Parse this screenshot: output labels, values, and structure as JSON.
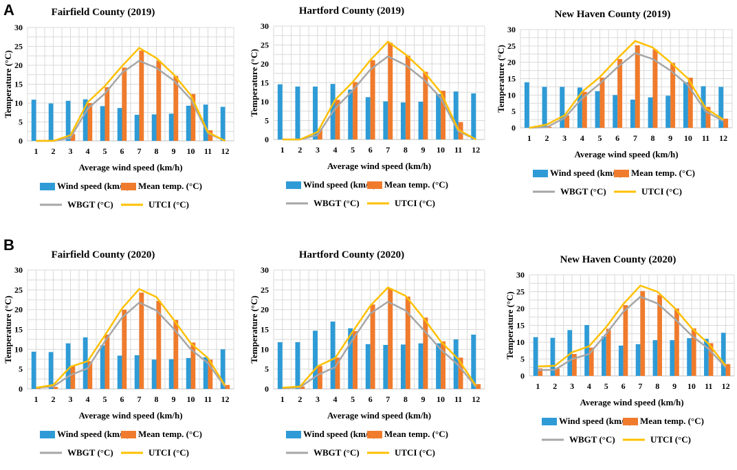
{
  "panel_labels": [
    "A",
    "B"
  ],
  "colors": {
    "wind": "#2e9bd6",
    "mean": "#f07b2c",
    "wbgt": "#a6a6a6",
    "utci": "#ffc000"
  },
  "chart_data": [
    {
      "type": "bar",
      "title": "Fairfield County (2019)",
      "xlabel": "Average wind speed (km/h)",
      "ylabel": "Temperature (°C)",
      "ylim": [
        0,
        30
      ],
      "yticks": [
        "0",
        "5",
        "10",
        "15",
        "20",
        "25",
        "30"
      ],
      "categories": [
        "1",
        "2",
        "3",
        "4",
        "5",
        "6",
        "7",
        "8",
        "9",
        "10",
        "11",
        "12"
      ],
      "series": [
        {
          "name": "Wind speed (km/h)",
          "kind": "bar",
          "values": [
            10.9,
            9.9,
            10.6,
            11.0,
            9.2,
            8.7,
            6.9,
            7.0,
            7.2,
            9.3,
            9.6,
            9.0
          ]
        },
        {
          "name": "Mean temp. (°C)",
          "kind": "bar",
          "values": [
            0,
            0,
            1.8,
            10.0,
            14.2,
            19.4,
            23.9,
            21.2,
            17.2,
            12.4,
            2.8,
            0
          ]
        },
        {
          "name": "WBGT (°C)",
          "kind": "line",
          "values": [
            -0.5,
            -0.8,
            0.8,
            8.5,
            12.5,
            18.0,
            21.2,
            19.3,
            16.0,
            11.0,
            2.0,
            -0.5
          ]
        },
        {
          "name": "UTCI (°C)",
          "kind": "line",
          "values": [
            -0.5,
            -0.8,
            1.5,
            10.2,
            14.5,
            19.8,
            24.6,
            21.9,
            17.6,
            12.1,
            2.3,
            -0.3
          ]
        }
      ],
      "legend": [
        "Wind speed (km/h)",
        "Mean temp. (°C)",
        "WBGT (°C)",
        "UTCI (°C)"
      ]
    },
    {
      "type": "bar",
      "title": "Hartford County (2019)",
      "xlabel": "Average wind speed (km/h)",
      "ylabel": "Temperature (°C)",
      "ylim": [
        0,
        30
      ],
      "yticks": [
        "0",
        "5",
        "10",
        "15",
        "20",
        "25",
        "30"
      ],
      "categories": [
        "1",
        "2",
        "3",
        "4",
        "5",
        "6",
        "7",
        "8",
        "9",
        "10",
        "11",
        "12"
      ],
      "series": [
        {
          "name": "Wind speed (km/h)",
          "kind": "bar",
          "values": [
            14.6,
            14.0,
            14.0,
            14.7,
            13.2,
            11.2,
            10.1,
            9.8,
            10.0,
            12.0,
            12.7,
            12.2
          ]
        },
        {
          "name": "Mean temp. (°C)",
          "kind": "bar",
          "values": [
            0,
            0,
            2.8,
            10.5,
            15.2,
            21.0,
            25.6,
            22.2,
            17.9,
            12.9,
            4.6,
            0
          ]
        },
        {
          "name": "WBGT (°C)",
          "kind": "line",
          "values": [
            -0.5,
            -0.8,
            1.2,
            8.2,
            13.0,
            18.5,
            22.0,
            19.7,
            16.0,
            11.0,
            2.2,
            -0.5
          ]
        },
        {
          "name": "UTCI (°C)",
          "kind": "line",
          "values": [
            -0.5,
            -0.8,
            2.0,
            10.5,
            15.2,
            21.0,
            25.9,
            22.5,
            18.2,
            12.5,
            2.6,
            -0.3
          ]
        }
      ],
      "legend": [
        "Wind speed (km/h)",
        "Mean temp. (°C)",
        "WBGT (°C)",
        "UTCI (°C)"
      ]
    },
    {
      "type": "bar",
      "title": "New Haven County (2019)",
      "xlabel": "Average wind speed (km/h)",
      "ylabel": "Temperature (°C)",
      "ylim": [
        0,
        30
      ],
      "yticks": [
        "0",
        "5",
        "10",
        "15",
        "20",
        "25",
        "30"
      ],
      "categories": [
        "1",
        "2",
        "3",
        "4",
        "5",
        "6",
        "7",
        "8",
        "9",
        "10",
        "11",
        "12"
      ],
      "series": [
        {
          "name": "Wind speed (km/h)",
          "kind": "bar",
          "values": [
            13.9,
            12.5,
            12.5,
            12.3,
            11.2,
            10.0,
            8.6,
            9.3,
            9.8,
            13.9,
            12.7,
            12.5
          ]
        },
        {
          "name": "Mean temp. (°C)",
          "kind": "bar",
          "values": [
            0,
            0.3,
            3.8,
            11.0,
            15.3,
            21.0,
            25.2,
            23.9,
            19.8,
            15.3,
            6.4,
            2.8
          ]
        },
        {
          "name": "WBGT (°C)",
          "kind": "line",
          "values": [
            0,
            0.2,
            3.0,
            9.0,
            13.5,
            18.5,
            22.8,
            21.0,
            17.5,
            13.0,
            5.0,
            2.0
          ]
        },
        {
          "name": "UTCI (°C)",
          "kind": "line",
          "values": [
            0,
            1.0,
            3.8,
            11.0,
            15.5,
            21.2,
            26.5,
            24.5,
            20.0,
            15.0,
            6.0,
            2.5
          ]
        }
      ],
      "legend": [
        "Wind speed (km/h)",
        "Mean temp. (°C)",
        "WBGT (°C)",
        "UTCI (°C)"
      ]
    },
    {
      "type": "bar",
      "title": "Fairfield County (2020)",
      "xlabel": "Average wind speed (km/h)",
      "ylabel": "Temperature (°C)",
      "ylim": [
        0,
        30
      ],
      "yticks": [
        "0",
        "5",
        "10",
        "15",
        "20",
        "25",
        "30"
      ],
      "categories": [
        "1",
        "2",
        "3",
        "4",
        "5",
        "6",
        "7",
        "8",
        "9",
        "10",
        "11",
        "12"
      ],
      "series": [
        {
          "name": "Wind speed (km/h)",
          "kind": "bar",
          "values": [
            9.4,
            9.3,
            11.5,
            13.0,
            11.0,
            8.4,
            8.5,
            7.4,
            7.5,
            7.8,
            8.0,
            10.0
          ]
        },
        {
          "name": "Mean temp. (°C)",
          "kind": "bar",
          "values": [
            0.5,
            0.5,
            5.8,
            7.0,
            13.7,
            20.0,
            24.3,
            22.2,
            17.4,
            11.7,
            7.4,
            1.0
          ]
        },
        {
          "name": "WBGT (°C)",
          "kind": "line",
          "values": [
            0.3,
            0.6,
            3.5,
            5.2,
            12.0,
            18.0,
            21.8,
            19.8,
            15.2,
            10.0,
            6.5,
            0.5
          ]
        },
        {
          "name": "UTCI (°C)",
          "kind": "line",
          "values": [
            0.3,
            1.0,
            5.6,
            7.0,
            13.5,
            20.3,
            25.2,
            23.2,
            17.5,
            11.5,
            7.8,
            0.8
          ]
        }
      ],
      "legend": [
        "Wind speed (km/h)",
        "Mean temp. (°C)",
        "WBGT (°C)",
        "UTCI (°C)"
      ]
    },
    {
      "type": "bar",
      "title": "Hartford County (2020)",
      "xlabel": "Average wind speed (km/h)",
      "ylabel": "Temperature (°C)",
      "ylim": [
        0,
        30
      ],
      "yticks": [
        "0",
        "5",
        "10",
        "15",
        "20",
        "25",
        "30"
      ],
      "categories": [
        "1",
        "2",
        "3",
        "4",
        "5",
        "6",
        "7",
        "8",
        "9",
        "10",
        "11",
        "12"
      ],
      "series": [
        {
          "name": "Wind speed (km/h)",
          "kind": "bar",
          "values": [
            11.8,
            11.8,
            14.7,
            17.0,
            15.3,
            11.3,
            11.1,
            11.2,
            11.5,
            11.5,
            12.5,
            13.7
          ]
        },
        {
          "name": "Mean temp. (°C)",
          "kind": "bar",
          "values": [
            0.3,
            0.6,
            5.8,
            7.9,
            14.6,
            21.3,
            25.3,
            23.3,
            18.0,
            12.0,
            7.9,
            1.2
          ]
        },
        {
          "name": "WBGT (°C)",
          "kind": "line",
          "values": [
            0.2,
            0.4,
            3.5,
            5.5,
            12.5,
            19.0,
            22.0,
            19.8,
            15.0,
            10.0,
            6.0,
            0.5
          ]
        },
        {
          "name": "UTCI (°C)",
          "kind": "line",
          "values": [
            0.3,
            0.6,
            5.7,
            7.8,
            14.5,
            21.0,
            25.6,
            23.5,
            18.0,
            12.0,
            7.5,
            0.8
          ]
        }
      ],
      "legend": [
        "Wind speed (km/h)",
        "Mean temp. (°C)",
        "WBGT (°C)",
        "UTCI (°C)"
      ]
    },
    {
      "type": "bar",
      "title": "New Haven County (2020)",
      "xlabel": "Average wind speed (km/h)",
      "ylabel": "Temperature (°C)",
      "ylim": [
        0,
        30
      ],
      "yticks": [
        "0",
        "5",
        "10",
        "15",
        "20",
        "25",
        "30"
      ],
      "categories": [
        "1",
        "2",
        "3",
        "4",
        "5",
        "6",
        "7",
        "8",
        "9",
        "10",
        "11",
        "12"
      ],
      "series": [
        {
          "name": "Wind speed (km/h)",
          "kind": "bar",
          "values": [
            11.5,
            11.3,
            13.6,
            15.1,
            11.7,
            9.0,
            9.4,
            10.6,
            10.6,
            11.2,
            11.0,
            12.8
          ]
        },
        {
          "name": "Mean temp. (°C)",
          "kind": "bar",
          "values": [
            2.2,
            2.2,
            6.5,
            8.4,
            14.0,
            21.0,
            25.2,
            24.0,
            20.0,
            14.1,
            9.7,
            3.5
          ]
        },
        {
          "name": "WBGT (°C)",
          "kind": "line",
          "values": [
            1.7,
            1.8,
            5.0,
            6.5,
            12.5,
            19.0,
            23.5,
            21.5,
            17.0,
            12.0,
            8.0,
            2.5
          ]
        },
        {
          "name": "UTCI (°C)",
          "kind": "line",
          "values": [
            2.8,
            3.0,
            7.0,
            8.8,
            14.5,
            21.3,
            26.8,
            25.0,
            20.2,
            14.2,
            9.5,
            3.0
          ]
        }
      ],
      "legend": [
        "Wind speed (km/h)",
        "Mean temp. (°C)",
        "WBGT (°C)",
        "UTCI (°C)"
      ]
    }
  ]
}
